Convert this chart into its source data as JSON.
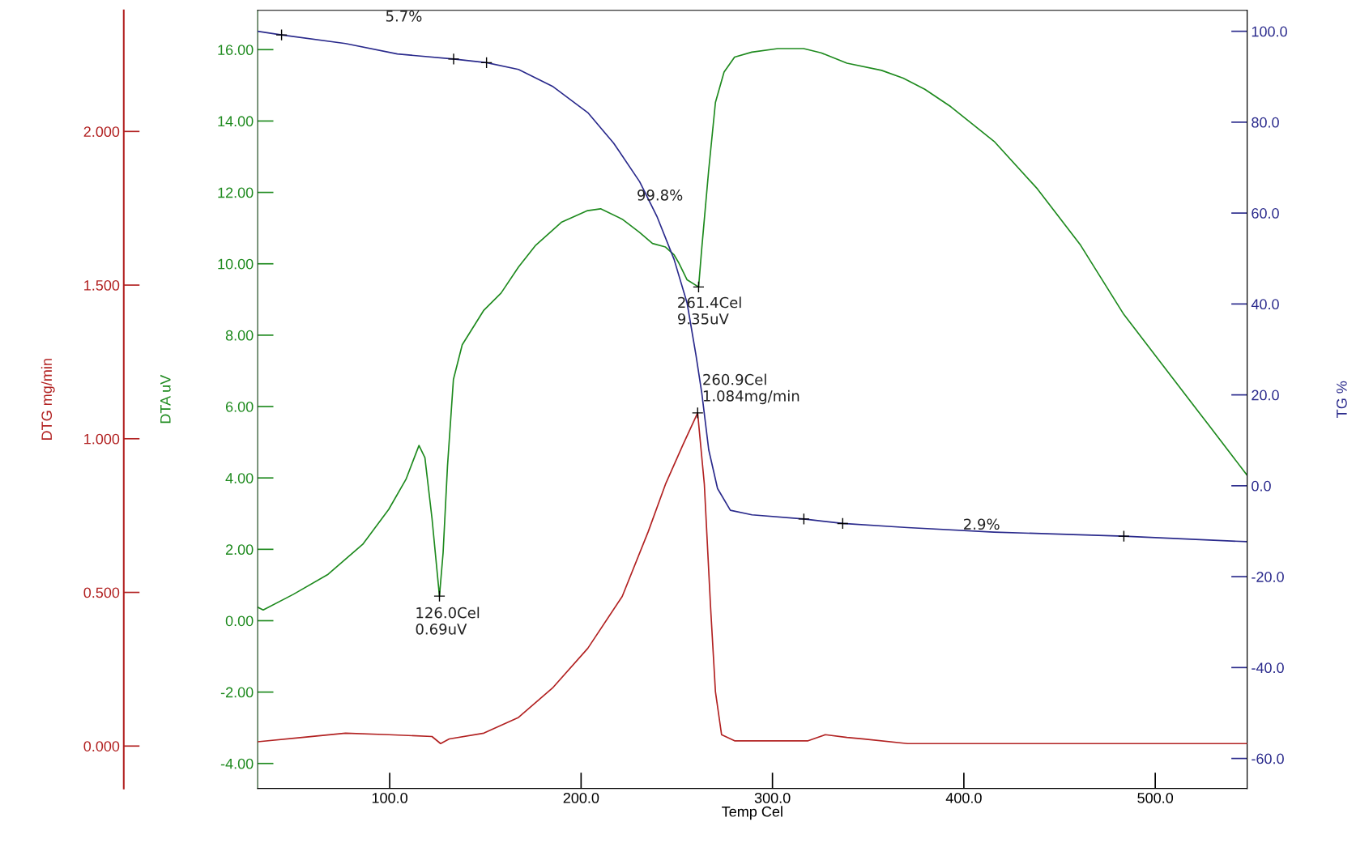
{
  "chart_data": {
    "type": "line",
    "xlabel": "Temp Cel",
    "ylabel": "DTG mg/min",
    "y2label": "TG %",
    "y3label": "DTA uV",
    "xlim": [
      31,
      548
    ],
    "xticks": [
      {
        "value": 100,
        "label": "100.0"
      },
      {
        "value": 200,
        "label": "200.0"
      },
      {
        "value": 300,
        "label": "300.0"
      },
      {
        "value": 400,
        "label": "400.0"
      },
      {
        "value": 500,
        "label": "500.0"
      }
    ],
    "y3lim": [
      -4.7,
      17.1
    ],
    "y3ticks": [
      {
        "value": -4,
        "label": "-4.00"
      },
      {
        "value": -2,
        "label": "-2.00"
      },
      {
        "value": 0,
        "label": "0.00"
      },
      {
        "value": 2,
        "label": "2.00"
      },
      {
        "value": 4,
        "label": "4.00"
      },
      {
        "value": 6,
        "label": "6.00"
      },
      {
        "value": 8,
        "label": "8.00"
      },
      {
        "value": 10,
        "label": "10.00"
      },
      {
        "value": 12,
        "label": "12.00"
      },
      {
        "value": 14,
        "label": "14.00"
      },
      {
        "value": 16,
        "label": "16.00"
      }
    ],
    "y2lim": [
      -66.6,
      104.6
    ],
    "y2ticks": [
      {
        "value": -60,
        "label": "-60.0"
      },
      {
        "value": -40,
        "label": "-40.0"
      },
      {
        "value": -20,
        "label": "-20.0"
      },
      {
        "value": 0,
        "label": "0.0"
      },
      {
        "value": 20,
        "label": "20.0"
      },
      {
        "value": 40,
        "label": "40.0"
      },
      {
        "value": 60,
        "label": "60.0"
      },
      {
        "value": 80,
        "label": "80.0"
      },
      {
        "value": 100,
        "label": "100.0"
      }
    ],
    "ylim": [
      -0.138,
      2.394
    ],
    "yticks": [
      {
        "value": 0,
        "label": "0.000"
      },
      {
        "value": 0.5,
        "label": "0.500"
      },
      {
        "value": 1,
        "label": "1.000"
      },
      {
        "value": 1.5,
        "label": "1.500"
      },
      {
        "value": 2,
        "label": "2.000"
      }
    ],
    "grid": false,
    "legend": false,
    "series": [
      {
        "axis": "y3",
        "color": "#1e8a1e",
        "x": [
          31,
          33.9,
          49.7,
          67.8,
          85.9,
          99.5,
          108.5,
          115.3,
          118.4,
          122.1,
          126.0,
          127.9,
          130.2,
          133.3,
          137.9,
          149.2,
          158.2,
          167.3,
          176.3,
          189.9,
          203.4,
          210.2,
          221.5,
          230.5,
          237.3,
          244.1,
          248.6,
          250.9,
          255.4,
          261.4,
          263.0,
          266.6,
          270.2,
          274.7,
          280.2,
          289.2,
          302.8,
          316.3,
          325.4,
          338.9,
          357.0,
          368.3,
          379.6,
          393.2,
          415.8,
          438.4,
          461.0,
          483.6,
          506.2,
          528.8,
          547.8
        ],
        "values": [
          0.38,
          0.3,
          0.74,
          1.3,
          2.14,
          3.12,
          3.96,
          4.91,
          4.57,
          2.87,
          0.69,
          1.9,
          4.33,
          6.76,
          7.73,
          8.7,
          9.18,
          9.91,
          10.52,
          11.17,
          11.49,
          11.54,
          11.25,
          10.88,
          10.57,
          10.47,
          10.25,
          10.04,
          9.55,
          9.35,
          10.4,
          12.58,
          14.52,
          15.37,
          15.79,
          15.93,
          16.03,
          16.03,
          15.91,
          15.62,
          15.42,
          15.2,
          14.89,
          14.4,
          13.43,
          12.1,
          10.52,
          8.58,
          7.0,
          5.42,
          4.09
        ]
      },
      {
        "axis": "y2",
        "color": "#2a2a8c",
        "x": [
          31,
          43.5,
          76.9,
          104.0,
          133.4,
          150.6,
          167.3,
          185.4,
          203.5,
          217.0,
          230.6,
          239.6,
          248.6,
          255.4,
          260.0,
          263.1,
          266.7,
          271.3,
          278.0,
          289.3,
          316.4,
          336.7,
          370.6,
          415.8,
          483.6,
          547.8
        ],
        "values": [
          100.0,
          99.2,
          97.3,
          95.0,
          93.9,
          93.1,
          91.6,
          87.8,
          82.1,
          75.4,
          66.9,
          59.3,
          49.8,
          40.2,
          28.8,
          20.3,
          7.9,
          -0.6,
          -5.4,
          -6.4,
          -7.3,
          -8.3,
          -9.2,
          -10.2,
          -11.1,
          -12.3
        ]
      },
      {
        "axis": "y",
        "color": "#b22222",
        "x": [
          31,
          54.3,
          76.9,
          99.5,
          122.1,
          126.6,
          131.1,
          149.2,
          167.3,
          185.4,
          203.5,
          221.5,
          235.1,
          244.1,
          253.2,
          260.9,
          264.4,
          267.6,
          270.2,
          273.4,
          280.2,
          302.8,
          318.6,
          327.6,
          338.9,
          348.0,
          370.6,
          438.4,
          547.8
        ],
        "values": [
          0.014,
          0.028,
          0.042,
          0.037,
          0.031,
          0.008,
          0.023,
          0.042,
          0.093,
          0.191,
          0.318,
          0.487,
          0.698,
          0.852,
          0.98,
          1.084,
          0.852,
          0.459,
          0.177,
          0.037,
          0.017,
          0.017,
          0.017,
          0.037,
          0.028,
          0.023,
          0.008,
          0.008,
          0.008
        ]
      },
      {
        "type": "scatter",
        "axis": "y2",
        "color": "#000000",
        "marker": "cross",
        "x": [
          43.5,
          133.4,
          150.6,
          316.4,
          336.7,
          483.6
        ],
        "values": [
          99.2,
          93.9,
          93.1,
          -7.3,
          -8.3,
          -11.1
        ]
      },
      {
        "type": "scatter",
        "axis": "y3",
        "color": "#000000",
        "marker": "cross",
        "x": [
          126.0,
          261.4
        ],
        "values": [
          0.69,
          9.35
        ]
      },
      {
        "type": "scatter",
        "axis": "y",
        "color": "#000000",
        "marker": "cross",
        "x": [
          260.9
        ],
        "values": [
          1.084
        ]
      }
    ],
    "annotations": [
      "5.7%",
      "99.8%",
      "261.4Cel\n9.35uV",
      "260.9Cel\n1.084mg/min",
      "2.9%",
      "126.0Cel\n0.69uV"
    ]
  }
}
